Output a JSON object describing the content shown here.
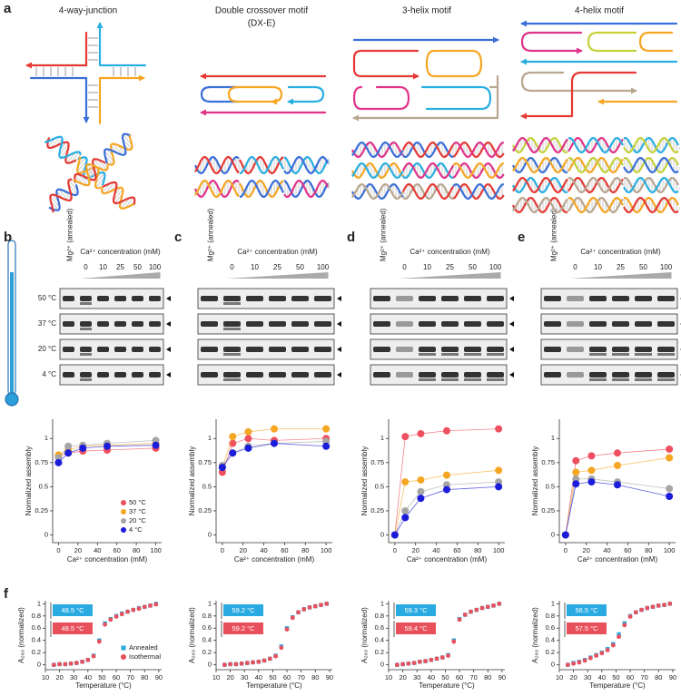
{
  "panel_labels": [
    "a",
    "b",
    "c",
    "d",
    "e",
    "f"
  ],
  "motifs": [
    {
      "title": [
        "4-way-junction"
      ]
    },
    {
      "title": [
        "Double crossover motif",
        "(DX-E)"
      ]
    },
    {
      "title": [
        "3-helix motif"
      ]
    },
    {
      "title": [
        "4-helix motif"
      ]
    }
  ],
  "gels": {
    "marker_label": "Mg²⁺ (annealed)",
    "axis_label": "Ca²⁺ concentration (mM)",
    "lanes": [
      "0",
      "10",
      "25",
      "50",
      "100"
    ],
    "temperatures": [
      "50 °C",
      "37 °C",
      "20 °C",
      "4 °C"
    ]
  },
  "chart_data": [
    {
      "type": "scatter",
      "x_label": "Ca²⁺ concentration (mM)",
      "y_label": "Normalized assembly",
      "x": [
        0,
        10,
        25,
        50,
        100
      ],
      "xlim": [
        -6,
        106
      ],
      "ylim": [
        -0.08,
        1.2
      ],
      "xticks": [
        0,
        20,
        40,
        60,
        80,
        100
      ],
      "yticks": [
        0,
        0.25,
        0.5,
        0.75,
        1
      ],
      "lines": true,
      "legend": "lower right",
      "series": [
        {
          "name": "50 °C",
          "color": "#ef4f5e",
          "values": [
            0.82,
            0.85,
            0.87,
            0.88,
            0.9
          ]
        },
        {
          "name": "37 °C",
          "color": "#f5a623",
          "values": [
            0.83,
            0.88,
            0.92,
            0.93,
            0.95
          ]
        },
        {
          "name": "20 °C",
          "color": "#a6a6a6",
          "values": [
            0.8,
            0.92,
            0.93,
            0.95,
            0.98
          ]
        },
        {
          "name": "4 °C",
          "color": "#1c1cdb",
          "values": [
            0.75,
            0.85,
            0.9,
            0.92,
            0.93
          ]
        }
      ]
    },
    {
      "type": "scatter",
      "x_label": "Ca²⁺ concentration (mM)",
      "y_label": "Normalized assembly",
      "x": [
        0,
        10,
        25,
        50,
        100
      ],
      "xlim": [
        -6,
        106
      ],
      "ylim": [
        -0.08,
        1.2
      ],
      "xticks": [
        0,
        20,
        40,
        60,
        80,
        100
      ],
      "yticks": [
        0,
        0.25,
        0.5,
        0.75,
        1
      ],
      "lines": true,
      "series": [
        {
          "color": "#ef4f5e",
          "values": [
            0.65,
            0.95,
            1.0,
            0.98,
            1.0
          ]
        },
        {
          "color": "#f5a623",
          "values": [
            0.7,
            1.02,
            1.07,
            1.1,
            1.1
          ]
        },
        {
          "color": "#a6a6a6",
          "values": [
            0.72,
            0.85,
            0.92,
            0.95,
            0.97
          ]
        },
        {
          "color": "#1c1cdb",
          "values": [
            0.7,
            0.85,
            0.9,
            0.95,
            0.92
          ]
        }
      ]
    },
    {
      "type": "scatter",
      "x_label": "Ca²⁺ concentration (mM)",
      "y_label": "Normalized assembly",
      "x": [
        0,
        10,
        25,
        50,
        100
      ],
      "xlim": [
        -6,
        106
      ],
      "ylim": [
        -0.08,
        1.2
      ],
      "xticks": [
        0,
        20,
        40,
        60,
        80,
        100
      ],
      "yticks": [
        0,
        0.25,
        0.5,
        0.75,
        1
      ],
      "lines": true,
      "series": [
        {
          "color": "#ef4f5e",
          "values": [
            0,
            1.02,
            1.05,
            1.08,
            1.1
          ]
        },
        {
          "color": "#f5a623",
          "values": [
            0,
            0.55,
            0.57,
            0.62,
            0.67
          ]
        },
        {
          "color": "#a6a6a6",
          "values": [
            0,
            0.25,
            0.45,
            0.52,
            0.55
          ]
        },
        {
          "color": "#1c1cdb",
          "values": [
            0,
            0.18,
            0.38,
            0.47,
            0.5
          ]
        }
      ]
    },
    {
      "type": "scatter",
      "x_label": "Ca²⁺ concentration (mM)",
      "y_label": "Normalized assembly",
      "x": [
        0,
        10,
        25,
        50,
        100
      ],
      "xlim": [
        -6,
        106
      ],
      "ylim": [
        -0.08,
        1.2
      ],
      "xticks": [
        0,
        20,
        40,
        60,
        80,
        100
      ],
      "yticks": [
        0,
        0.25,
        0.5,
        0.75,
        1
      ],
      "lines": true,
      "series": [
        {
          "color": "#ef4f5e",
          "values": [
            0,
            0.77,
            0.82,
            0.85,
            0.89
          ]
        },
        {
          "color": "#f5a623",
          "values": [
            0,
            0.65,
            0.67,
            0.72,
            0.8
          ]
        },
        {
          "color": "#a6a6a6",
          "values": [
            0,
            0.58,
            0.58,
            0.55,
            0.48
          ]
        },
        {
          "color": "#1c1cdb",
          "values": [
            0,
            0.53,
            0.55,
            0.52,
            0.4
          ]
        }
      ]
    },
    {
      "type": "scatter",
      "x_label": "Temperature (°C)",
      "y_label": "A₂₆₀ (normalized)",
      "x": [
        16,
        20,
        24,
        28,
        32,
        36,
        40,
        44,
        48,
        52,
        56,
        60,
        64,
        68,
        72,
        76,
        80,
        84,
        88
      ],
      "xlim": [
        10,
        92
      ],
      "ylim": [
        -0.08,
        1.05
      ],
      "xticks": [
        10,
        20,
        30,
        40,
        50,
        60,
        70,
        80,
        90
      ],
      "yticks": [
        0,
        0.2,
        0.4,
        0.6,
        0.8,
        1
      ],
      "legend": "lower right",
      "annotations": [
        {
          "text": "48.5 °C",
          "color": "#29abe2"
        },
        {
          "text": "48.5 °C",
          "color": "#e8505b"
        }
      ],
      "series": [
        {
          "name": "Annealed",
          "color": "#29a8e0",
          "marker": "square",
          "values": [
            0,
            0.01,
            0.01,
            0.02,
            0.03,
            0.05,
            0.08,
            0.15,
            0.4,
            0.68,
            0.75,
            0.8,
            0.84,
            0.87,
            0.9,
            0.93,
            0.95,
            0.97,
            1.0
          ]
        },
        {
          "name": "Isothermal",
          "color": "#e8505b",
          "marker": "circle",
          "values": [
            0,
            0.01,
            0.01,
            0.02,
            0.03,
            0.05,
            0.08,
            0.14,
            0.38,
            0.66,
            0.74,
            0.79,
            0.83,
            0.87,
            0.9,
            0.92,
            0.95,
            0.97,
            0.99
          ]
        }
      ]
    },
    {
      "type": "scatter",
      "x_label": "Temperature (°C)",
      "y_label": "A₂₆₀ (normalized)",
      "x": [
        16,
        20,
        24,
        28,
        32,
        36,
        40,
        44,
        48,
        52,
        56,
        60,
        64,
        68,
        72,
        76,
        80,
        84,
        88
      ],
      "xlim": [
        10,
        92
      ],
      "ylim": [
        -0.08,
        1.05
      ],
      "xticks": [
        10,
        20,
        30,
        40,
        50,
        60,
        70,
        80,
        90
      ],
      "yticks": [
        0,
        0.2,
        0.4,
        0.6,
        0.8,
        1
      ],
      "annotations": [
        {
          "text": "59.2 °C",
          "color": "#29abe2"
        },
        {
          "text": "59.2 °C",
          "color": "#e8505b"
        }
      ],
      "series": [
        {
          "color": "#29a8e0",
          "marker": "square",
          "values": [
            0,
            0.01,
            0.01,
            0.02,
            0.03,
            0.04,
            0.05,
            0.07,
            0.1,
            0.15,
            0.3,
            0.6,
            0.78,
            0.86,
            0.91,
            0.94,
            0.96,
            0.98,
            1.0
          ]
        },
        {
          "color": "#e8505b",
          "marker": "circle",
          "values": [
            0,
            0.01,
            0.01,
            0.02,
            0.03,
            0.04,
            0.05,
            0.07,
            0.1,
            0.14,
            0.28,
            0.58,
            0.77,
            0.86,
            0.91,
            0.94,
            0.96,
            0.98,
            1.0
          ]
        }
      ]
    },
    {
      "type": "scatter",
      "x_label": "Temperature (°C)",
      "y_label": "A₂₆₀ (normalized)",
      "x": [
        16,
        20,
        24,
        28,
        32,
        36,
        40,
        44,
        48,
        52,
        56,
        60,
        64,
        68,
        72,
        76,
        80,
        84,
        88
      ],
      "xlim": [
        10,
        92
      ],
      "ylim": [
        -0.08,
        1.05
      ],
      "xticks": [
        10,
        20,
        30,
        40,
        50,
        60,
        70,
        80,
        90
      ],
      "yticks": [
        0,
        0.2,
        0.4,
        0.6,
        0.8,
        1
      ],
      "annotations": [
        {
          "text": "59.3 °C",
          "color": "#29abe2"
        },
        {
          "text": "59.4 °C",
          "color": "#e8505b"
        }
      ],
      "series": [
        {
          "color": "#29a8e0",
          "marker": "square",
          "values": [
            0,
            0.01,
            0.02,
            0.03,
            0.05,
            0.06,
            0.08,
            0.1,
            0.12,
            0.16,
            0.4,
            0.75,
            0.82,
            0.87,
            0.9,
            0.93,
            0.95,
            0.97,
            1.0
          ]
        },
        {
          "color": "#e8505b",
          "marker": "circle",
          "values": [
            0,
            0.01,
            0.02,
            0.03,
            0.05,
            0.06,
            0.08,
            0.1,
            0.12,
            0.15,
            0.38,
            0.74,
            0.82,
            0.87,
            0.9,
            0.93,
            0.95,
            0.97,
            1.0
          ]
        }
      ]
    },
    {
      "type": "scatter",
      "x_label": "Temperature (°C)",
      "y_label": "A₂₆₀ (normalized)",
      "x": [
        16,
        20,
        24,
        28,
        32,
        36,
        40,
        44,
        48,
        52,
        56,
        60,
        64,
        68,
        72,
        76,
        80,
        84,
        88
      ],
      "xlim": [
        10,
        92
      ],
      "ylim": [
        -0.08,
        1.05
      ],
      "xticks": [
        10,
        20,
        30,
        40,
        50,
        60,
        70,
        80,
        90
      ],
      "yticks": [
        0,
        0.2,
        0.4,
        0.6,
        0.8,
        1
      ],
      "annotations": [
        {
          "text": "56.5 °C",
          "color": "#29abe2"
        },
        {
          "text": "57.5 °C",
          "color": "#e8505b"
        }
      ],
      "series": [
        {
          "color": "#29a8e0",
          "marker": "square",
          "values": [
            0,
            0.03,
            0.05,
            0.08,
            0.12,
            0.16,
            0.2,
            0.26,
            0.34,
            0.5,
            0.68,
            0.8,
            0.86,
            0.9,
            0.93,
            0.95,
            0.97,
            0.98,
            1.0
          ]
        },
        {
          "color": "#e8505b",
          "marker": "circle",
          "values": [
            0,
            0.02,
            0.04,
            0.07,
            0.11,
            0.15,
            0.19,
            0.24,
            0.32,
            0.46,
            0.65,
            0.79,
            0.86,
            0.9,
            0.93,
            0.95,
            0.97,
            0.98,
            1.0
          ]
        }
      ]
    }
  ]
}
